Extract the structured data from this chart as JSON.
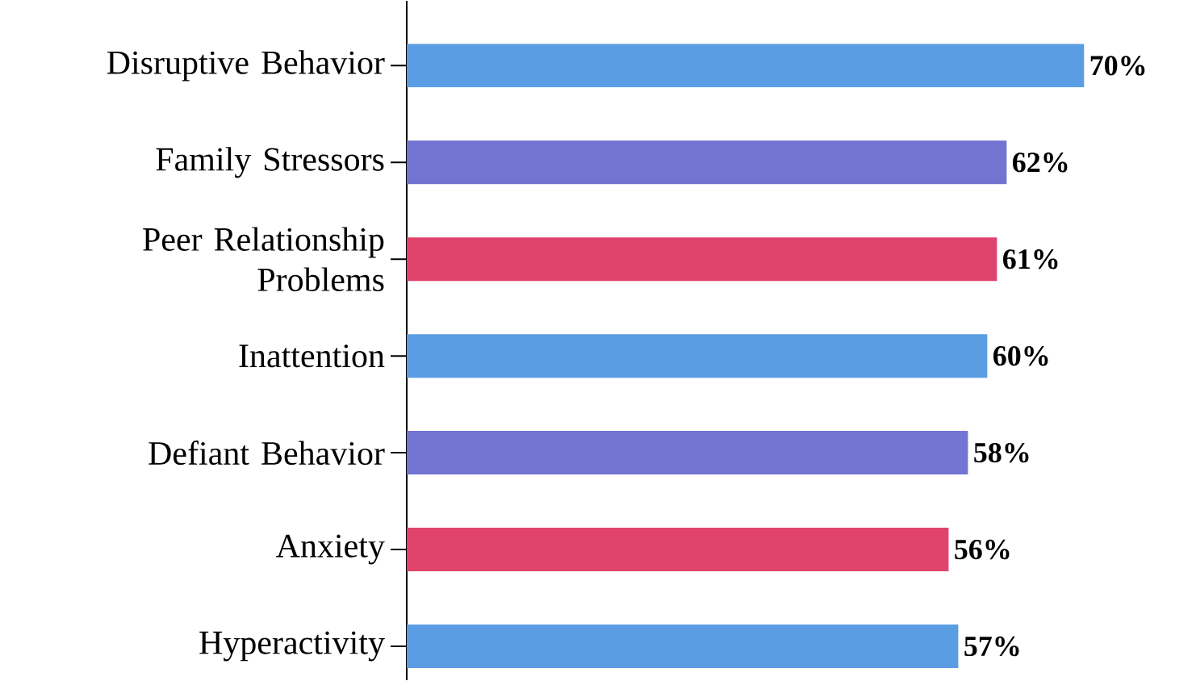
{
  "chart_data": {
    "type": "bar",
    "orientation": "horizontal",
    "categories": [
      "Disruptive Behavior",
      "Family Stressors",
      "Peer Relationship Problems",
      "Inattention",
      "Defiant Behavior",
      "Anxiety",
      "Hyperactivity"
    ],
    "values": [
      70,
      62,
      61,
      60,
      58,
      56,
      57
    ],
    "value_labels": [
      "70%",
      "62%",
      "61%",
      "60%",
      "58%",
      "56%",
      "57%"
    ],
    "colors": [
      "#5b9de3",
      "#7373d2",
      "#e0446c",
      "#5b9de3",
      "#7373d2",
      "#e0446c",
      "#5b9de3"
    ]
  }
}
